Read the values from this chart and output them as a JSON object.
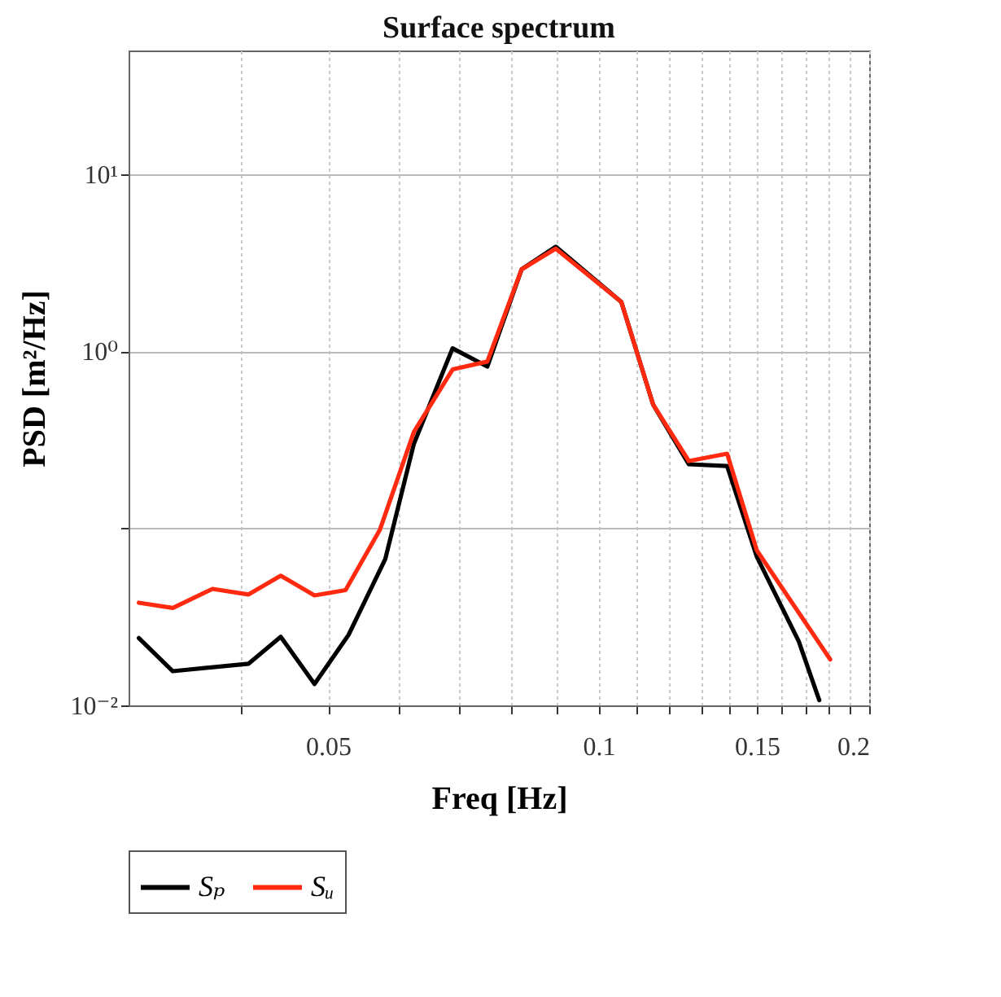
{
  "chart_data": {
    "type": "line",
    "title": "Surface spectrum",
    "xlabel": "Freq [Hz]",
    "ylabel": "PSD [m²/Hz]",
    "log": "xy",
    "grid": true,
    "legend": "bottom",
    "line_style": "solid",
    "xlim": [
      0.03,
      0.2
    ],
    "ylim": [
      0.01,
      50
    ],
    "xticks": [
      {
        "value": 0.04,
        "label": null
      },
      0.05,
      {
        "value": 0.06,
        "label": null
      },
      {
        "value": 0.07,
        "label": null
      },
      {
        "value": 0.08,
        "label": null
      },
      {
        "value": 0.09,
        "label": null
      },
      0.1,
      {
        "value": 0.11,
        "label": null
      },
      {
        "value": 0.12,
        "label": null
      },
      {
        "value": 0.13,
        "label": null
      },
      {
        "value": 0.14,
        "label": null
      },
      0.15,
      {
        "value": 0.16,
        "label": null
      },
      {
        "value": 0.17,
        "label": null
      },
      {
        "value": 0.18,
        "label": null
      },
      {
        "value": 0.19,
        "label": null
      },
      0.2
    ],
    "yticks": [
      {
        "value": 0.01,
        "label": "10⁻²"
      },
      {
        "value": 0.1,
        "label": null
      },
      {
        "value": 1,
        "label": "10⁰"
      },
      {
        "value": 10,
        "label": "10¹"
      }
    ],
    "series": [
      {
        "name": "Sₚ",
        "color": "#000000",
        "x": [
          0.0308,
          0.0336,
          0.0408,
          0.0443,
          0.0483,
          0.0527,
          0.0579,
          0.0623,
          0.0688,
          0.0752,
          0.0821,
          0.0896,
          0.106,
          0.115,
          0.126,
          0.139,
          0.15,
          0.167,
          0.176
        ],
        "values": [
          0.024,
          0.0156,
          0.0172,
          0.0244,
          0.0132,
          0.025,
          0.067,
          0.3,
          1.04,
          0.82,
          2.9,
          3.9,
          1.9,
          0.5,
          0.23,
          0.225,
          0.069,
          0.023,
          0.0107
        ]
      },
      {
        "name": "Sᵤ",
        "color": "#ff2a10",
        "x": [
          0.0308,
          0.0336,
          0.0372,
          0.0408,
          0.0443,
          0.0483,
          0.0523,
          0.0571,
          0.0623,
          0.0688,
          0.0752,
          0.0821,
          0.0896,
          0.106,
          0.115,
          0.126,
          0.139,
          0.15,
          0.181
        ],
        "values": [
          0.038,
          0.0355,
          0.0455,
          0.0423,
          0.054,
          0.0418,
          0.0448,
          0.098,
          0.35,
          0.79,
          0.875,
          2.9,
          3.8,
          1.9,
          0.5,
          0.24,
          0.264,
          0.075,
          0.0182
        ]
      }
    ]
  }
}
